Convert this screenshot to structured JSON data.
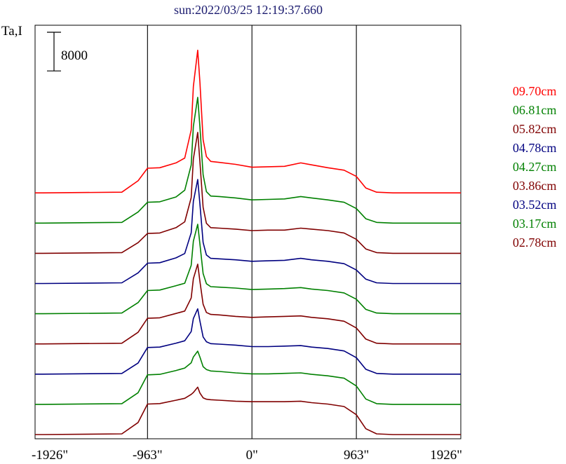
{
  "chart_data": {
    "type": "line",
    "title": "sun:2022/03/25 12:19:37.660",
    "ylabel": "Ta,I",
    "xlabel": "",
    "xlim": [
      -2000,
      1926
    ],
    "x_ticks": [
      {
        "value": -1926,
        "label": "-1926\""
      },
      {
        "value": -963,
        "label": "-963\""
      },
      {
        "value": 0,
        "label": "0\""
      },
      {
        "value": 963,
        "label": "963\""
      },
      {
        "value": 1926,
        "label": "1926\""
      }
    ],
    "vertical_lines": [
      -963,
      0,
      963
    ],
    "scale_bar": {
      "label": "8000",
      "value": 8000
    },
    "series_points": [
      -1926,
      -1200,
      -1050,
      -963,
      -850,
      -700,
      -620,
      -560,
      -540,
      -500,
      -480,
      -450,
      -420,
      -380,
      -300,
      -150,
      0,
      150,
      300,
      450,
      550,
      700,
      850,
      963,
      1050,
      1150,
      1300,
      1926
    ],
    "series": [
      {
        "name": "09.70cm",
        "color": "#ff0000",
        "values": [
          0,
          150,
          2500,
          5100,
          5200,
          6200,
          7200,
          13000,
          22000,
          29500,
          23000,
          11000,
          7500,
          6500,
          6300,
          5900,
          5300,
          5400,
          5500,
          6200,
          5800,
          5200,
          4700,
          3400,
          1000,
          150,
          0,
          0
        ]
      },
      {
        "name": "06.81cm",
        "color": "#008000",
        "values": [
          0,
          150,
          2300,
          4300,
          4400,
          5400,
          6800,
          12000,
          20000,
          26000,
          20000,
          10000,
          6500,
          5600,
          5500,
          5200,
          4800,
          4900,
          5000,
          5500,
          5200,
          4800,
          4300,
          3000,
          900,
          150,
          0,
          0
        ]
      },
      {
        "name": "05.82cm",
        "color": "#800000",
        "values": [
          0,
          150,
          2200,
          4100,
          4200,
          5300,
          6500,
          11500,
          19500,
          25000,
          19000,
          9500,
          6200,
          5300,
          5200,
          5000,
          4700,
          4800,
          4800,
          5200,
          5000,
          4700,
          4200,
          2900,
          900,
          150,
          0,
          0
        ]
      },
      {
        "name": "04.78cm",
        "color": "#000080",
        "values": [
          0,
          150,
          2200,
          4200,
          4300,
          5300,
          6200,
          10500,
          17000,
          21500,
          16500,
          8500,
          5900,
          5200,
          5100,
          4900,
          4600,
          4700,
          4800,
          5200,
          4900,
          4600,
          4100,
          2800,
          900,
          150,
          0,
          0
        ]
      },
      {
        "name": "04.27cm",
        "color": "#008000",
        "values": [
          0,
          150,
          2300,
          4800,
          4900,
          5800,
          6300,
          10000,
          15000,
          18500,
          14500,
          8300,
          6200,
          5600,
          5500,
          5300,
          5000,
          5100,
          5200,
          5400,
          5100,
          4800,
          4300,
          3000,
          900,
          150,
          0,
          0
        ]
      },
      {
        "name": "03.86cm",
        "color": "#800000",
        "values": [
          0,
          150,
          2400,
          5300,
          5400,
          6300,
          6800,
          9500,
          13500,
          16500,
          13000,
          8200,
          6500,
          6100,
          6000,
          5700,
          5500,
          5600,
          5700,
          5800,
          5500,
          5200,
          4700,
          3300,
          1000,
          150,
          0,
          0
        ]
      },
      {
        "name": "03.52cm",
        "color": "#000080",
        "values": [
          0,
          150,
          2300,
          5500,
          5600,
          6400,
          6900,
          8800,
          11500,
          13500,
          11000,
          7700,
          6700,
          6300,
          6200,
          6000,
          5700,
          5700,
          5800,
          5900,
          5600,
          5300,
          4800,
          3400,
          1000,
          150,
          0,
          0
        ]
      },
      {
        "name": "03.17cm",
        "color": "#008000",
        "values": [
          0,
          150,
          2400,
          6100,
          6200,
          7000,
          7500,
          8600,
          9800,
          11000,
          9800,
          7800,
          7200,
          6900,
          6800,
          6500,
          6300,
          6300,
          6400,
          6500,
          6200,
          5900,
          5400,
          3800,
          1100,
          150,
          0,
          0
        ]
      },
      {
        "name": "02.78cm",
        "color": "#800000",
        "values": [
          0,
          150,
          2500,
          6300,
          6400,
          7100,
          7500,
          8300,
          8700,
          9800,
          8600,
          7600,
          7300,
          7200,
          7100,
          6900,
          6800,
          6800,
          6800,
          6900,
          6600,
          6300,
          5800,
          4100,
          1200,
          150,
          0,
          0
        ]
      }
    ]
  }
}
